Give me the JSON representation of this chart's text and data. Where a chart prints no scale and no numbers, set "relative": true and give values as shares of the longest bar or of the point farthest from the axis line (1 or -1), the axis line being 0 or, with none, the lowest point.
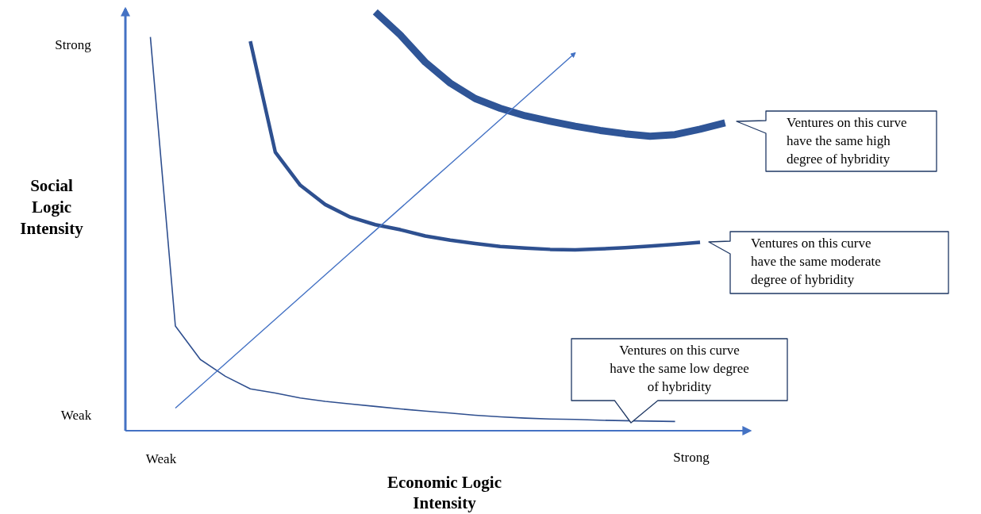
{
  "chart_data": {
    "type": "line",
    "relative": true,
    "xlabel": "Economic Logic Intensity",
    "ylabel": "Social Logic Intensity",
    "categories": [
      null,
      null,
      null,
      null,
      null,
      null,
      null,
      null,
      null,
      null,
      null,
      null,
      null,
      null,
      null,
      null,
      null,
      null,
      null,
      null,
      null,
      null,
      null,
      null,
      null
    ],
    "series": [
      {
        "color": "#2f4f8f",
        "values": [
          null,
          0.94,
          0.25,
          0.17,
          0.13,
          0.1,
          0.09,
          0.078,
          0.07,
          0.064,
          0.058,
          0.052,
          0.047,
          0.042,
          0.037,
          0.033,
          0.03,
          0.028,
          0.027,
          0.025,
          0.024,
          0.023,
          0.022,
          null,
          null
        ]
      },
      {
        "color": "#2e5090",
        "values": [
          null,
          null,
          null,
          null,
          null,
          0.93,
          0.665,
          0.586,
          0.54,
          0.51,
          0.492,
          0.48,
          0.465,
          0.455,
          0.447,
          0.44,
          0.436,
          0.433,
          0.432,
          0.434,
          0.437,
          0.441,
          0.445,
          0.45,
          null
        ]
      },
      {
        "color": "#2f5597",
        "values": [
          null,
          null,
          null,
          null,
          null,
          null,
          null,
          null,
          null,
          null,
          1.0,
          0.945,
          0.88,
          0.83,
          0.793,
          0.77,
          0.752,
          0.739,
          0.727,
          0.717,
          0.709,
          0.703,
          0.707,
          0.72,
          0.735
        ]
      },
      {
        "color": "#4472c4",
        "values": [
          null,
          null,
          0.054,
          0.107,
          0.16,
          0.213,
          0.266,
          0.319,
          0.372,
          0.425,
          0.478,
          0.531,
          0.584,
          0.637,
          0.69,
          0.743,
          0.796,
          0.849,
          0.902,
          null,
          null,
          null,
          null,
          null,
          null
        ]
      }
    ],
    "annotations": [
      "Ventures on this curve have the same high degree of hybridity",
      "Ventures on this curve have the same moderate degree of hybridity",
      "Ventures on this curve have the same low degree of hybridity",
      "Weak",
      "Strong",
      "Strong",
      "Weak"
    ]
  }
}
